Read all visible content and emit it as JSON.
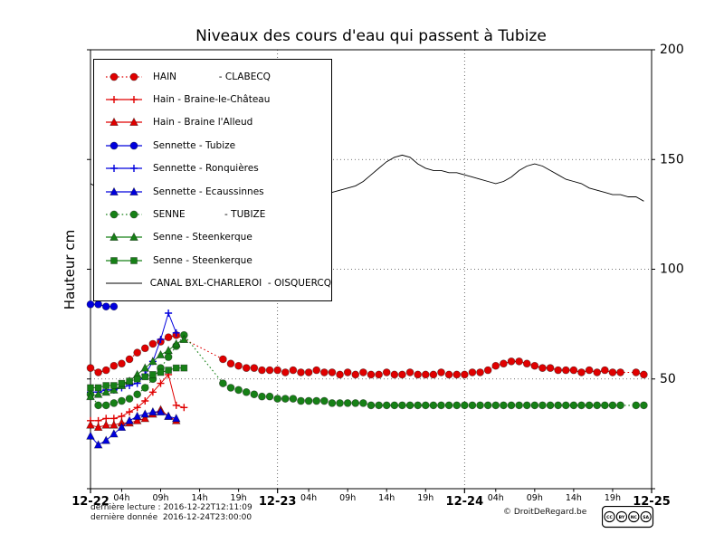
{
  "chart_data": {
    "type": "line",
    "title": "Niveaux des cours d'eau qui passent à Tubize",
    "xlabel": "",
    "ylabel": "Hauteur cm",
    "ylim": [
      0,
      200
    ],
    "yticks": [
      50,
      100,
      150,
      200
    ],
    "ytick_marks": [
      0,
      50,
      100,
      150,
      200
    ],
    "xlim_hours": [
      0,
      72
    ],
    "x_major": [
      {
        "hour": 0,
        "label": "12-22"
      },
      {
        "hour": 24,
        "label": "12-23"
      },
      {
        "hour": 48,
        "label": "12-24"
      },
      {
        "hour": 72,
        "label": "12-25"
      }
    ],
    "x_minor": [
      {
        "hour": 4,
        "label": "04h"
      },
      {
        "hour": 9,
        "label": "09h"
      },
      {
        "hour": 14,
        "label": "14h"
      },
      {
        "hour": 19,
        "label": "19h"
      },
      {
        "hour": 28,
        "label": "04h"
      },
      {
        "hour": 33,
        "label": "09h"
      },
      {
        "hour": 38,
        "label": "14h"
      },
      {
        "hour": 43,
        "label": "19h"
      },
      {
        "hour": 52,
        "label": "04h"
      },
      {
        "hour": 57,
        "label": "09h"
      },
      {
        "hour": 62,
        "label": "14h"
      },
      {
        "hour": 67,
        "label": "19h"
      }
    ],
    "grid": {
      "h_lines": [
        50,
        100,
        150
      ],
      "v_lines_hours": [
        24,
        48
      ]
    },
    "series": [
      {
        "name": "HAIN              - CLABECQ",
        "color": "#e00000",
        "marker": "circle",
        "linestyle": "dotted",
        "linewidth": 1.1,
        "points": [
          [
            0,
            55
          ],
          [
            1,
            53
          ],
          [
            2,
            54
          ],
          [
            3,
            56
          ],
          [
            4,
            57
          ],
          [
            5,
            59
          ],
          [
            6,
            62
          ],
          [
            7,
            64
          ],
          [
            8,
            66
          ],
          [
            9,
            67
          ],
          [
            10,
            69
          ],
          [
            11,
            70
          ],
          [
            17,
            59
          ],
          [
            18,
            57
          ],
          [
            19,
            56
          ],
          [
            20,
            55
          ],
          [
            21,
            55
          ],
          [
            22,
            54
          ],
          [
            23,
            54
          ],
          [
            24,
            54
          ],
          [
            25,
            53
          ],
          [
            26,
            54
          ],
          [
            27,
            53
          ],
          [
            28,
            53
          ],
          [
            29,
            54
          ],
          [
            30,
            53
          ],
          [
            31,
            53
          ],
          [
            32,
            52
          ],
          [
            33,
            53
          ],
          [
            34,
            52
          ],
          [
            35,
            53
          ],
          [
            36,
            52
          ],
          [
            37,
            52
          ],
          [
            38,
            53
          ],
          [
            39,
            52
          ],
          [
            40,
            52
          ],
          [
            41,
            53
          ],
          [
            42,
            52
          ],
          [
            43,
            52
          ],
          [
            44,
            52
          ],
          [
            45,
            53
          ],
          [
            46,
            52
          ],
          [
            47,
            52
          ],
          [
            48,
            52
          ],
          [
            49,
            53
          ],
          [
            50,
            53
          ],
          [
            51,
            54
          ],
          [
            52,
            56
          ],
          [
            53,
            57
          ],
          [
            54,
            58
          ],
          [
            55,
            58
          ],
          [
            56,
            57
          ],
          [
            57,
            56
          ],
          [
            58,
            55
          ],
          [
            59,
            55
          ],
          [
            60,
            54
          ],
          [
            61,
            54
          ],
          [
            62,
            54
          ],
          [
            63,
            53
          ],
          [
            64,
            54
          ],
          [
            65,
            53
          ],
          [
            66,
            54
          ],
          [
            67,
            53
          ],
          [
            68,
            53
          ],
          [
            70,
            53
          ],
          [
            71,
            52
          ]
        ]
      },
      {
        "name": "Hain - Braine-le-Château",
        "color": "#e00000",
        "marker": "plus",
        "linestyle": "solid",
        "linewidth": 1,
        "points": [
          [
            0,
            31
          ],
          [
            1,
            31
          ],
          [
            2,
            32
          ],
          [
            3,
            32
          ],
          [
            4,
            33
          ],
          [
            5,
            35
          ],
          [
            6,
            37
          ],
          [
            7,
            40
          ],
          [
            8,
            44
          ],
          [
            9,
            48
          ],
          [
            10,
            52
          ],
          [
            11,
            38
          ],
          [
            12,
            37
          ]
        ]
      },
      {
        "name": "Hain - Braine l'Alleud",
        "color": "#e00000",
        "marker": "triangle",
        "linestyle": "solid",
        "linewidth": 1,
        "points": [
          [
            0,
            29
          ],
          [
            1,
            28
          ],
          [
            2,
            29
          ],
          [
            3,
            29
          ],
          [
            4,
            30
          ],
          [
            5,
            30
          ],
          [
            6,
            31
          ],
          [
            7,
            32
          ],
          [
            8,
            34
          ],
          [
            9,
            36
          ],
          [
            10,
            33
          ],
          [
            11,
            31
          ]
        ]
      },
      {
        "name": "Sennette - Tubize",
        "color": "#0000dd",
        "marker": "circle",
        "linestyle": "solid",
        "linewidth": 1,
        "points": [
          [
            0,
            84
          ],
          [
            1,
            84
          ],
          [
            2,
            83
          ],
          [
            3,
            83
          ]
        ]
      },
      {
        "name": "Sennette - Ronquières",
        "color": "#0000dd",
        "marker": "plus",
        "linestyle": "solid",
        "linewidth": 1,
        "points": [
          [
            0,
            44
          ],
          [
            1,
            44
          ],
          [
            2,
            45
          ],
          [
            3,
            45
          ],
          [
            4,
            46
          ],
          [
            5,
            47
          ],
          [
            6,
            48
          ],
          [
            7,
            52
          ],
          [
            8,
            58
          ],
          [
            9,
            68
          ],
          [
            10,
            80
          ],
          [
            11,
            71
          ]
        ]
      },
      {
        "name": "Sennette - Ecaussinnes",
        "color": "#0000dd",
        "marker": "triangle",
        "linestyle": "solid",
        "linewidth": 1,
        "points": [
          [
            0,
            24
          ],
          [
            1,
            20
          ],
          [
            2,
            22
          ],
          [
            3,
            25
          ],
          [
            4,
            28
          ],
          [
            5,
            31
          ],
          [
            6,
            33
          ],
          [
            7,
            34
          ],
          [
            8,
            35
          ],
          [
            9,
            35
          ],
          [
            10,
            33
          ],
          [
            11,
            32
          ]
        ]
      },
      {
        "name": "SENNE             - TUBIZE",
        "color": "#168016",
        "marker": "circle",
        "linestyle": "dotted",
        "linewidth": 1.1,
        "points": [
          [
            0,
            43
          ],
          [
            1,
            38
          ],
          [
            2,
            38
          ],
          [
            3,
            39
          ],
          [
            4,
            40
          ],
          [
            5,
            41
          ],
          [
            6,
            43
          ],
          [
            7,
            46
          ],
          [
            8,
            50
          ],
          [
            9,
            55
          ],
          [
            10,
            60
          ],
          [
            11,
            65
          ],
          [
            12,
            70
          ],
          [
            17,
            48
          ],
          [
            18,
            46
          ],
          [
            19,
            45
          ],
          [
            20,
            44
          ],
          [
            21,
            43
          ],
          [
            22,
            42
          ],
          [
            23,
            42
          ],
          [
            24,
            41
          ],
          [
            25,
            41
          ],
          [
            26,
            41
          ],
          [
            27,
            40
          ],
          [
            28,
            40
          ],
          [
            29,
            40
          ],
          [
            30,
            40
          ],
          [
            31,
            39
          ],
          [
            32,
            39
          ],
          [
            33,
            39
          ],
          [
            34,
            39
          ],
          [
            35,
            39
          ],
          [
            36,
            38
          ],
          [
            37,
            38
          ],
          [
            38,
            38
          ],
          [
            39,
            38
          ],
          [
            40,
            38
          ],
          [
            41,
            38
          ],
          [
            42,
            38
          ],
          [
            43,
            38
          ],
          [
            44,
            38
          ],
          [
            45,
            38
          ],
          [
            46,
            38
          ],
          [
            47,
            38
          ],
          [
            48,
            38
          ],
          [
            49,
            38
          ],
          [
            50,
            38
          ],
          [
            51,
            38
          ],
          [
            52,
            38
          ],
          [
            53,
            38
          ],
          [
            54,
            38
          ],
          [
            55,
            38
          ],
          [
            56,
            38
          ],
          [
            57,
            38
          ],
          [
            58,
            38
          ],
          [
            59,
            38
          ],
          [
            60,
            38
          ],
          [
            61,
            38
          ],
          [
            62,
            38
          ],
          [
            63,
            38
          ],
          [
            64,
            38
          ],
          [
            65,
            38
          ],
          [
            66,
            38
          ],
          [
            67,
            38
          ],
          [
            68,
            38
          ],
          [
            70,
            38
          ],
          [
            71,
            38
          ]
        ]
      },
      {
        "name": "Senne - Steenkerque",
        "color": "#168016",
        "marker": "triangle",
        "linestyle": "solid",
        "linewidth": 1,
        "points": [
          [
            0,
            42
          ],
          [
            1,
            43
          ],
          [
            2,
            44
          ],
          [
            3,
            45
          ],
          [
            4,
            47
          ],
          [
            5,
            49
          ],
          [
            6,
            52
          ],
          [
            7,
            55
          ],
          [
            8,
            58
          ],
          [
            9,
            61
          ],
          [
            10,
            63
          ],
          [
            11,
            66
          ],
          [
            12,
            68
          ]
        ]
      },
      {
        "name": "Senne - Steenkerque",
        "color": "#168016",
        "marker": "square",
        "linestyle": "solid",
        "linewidth": 1,
        "points": [
          [
            0,
            46
          ],
          [
            1,
            46
          ],
          [
            2,
            47
          ],
          [
            3,
            47
          ],
          [
            4,
            48
          ],
          [
            5,
            49
          ],
          [
            6,
            50
          ],
          [
            7,
            51
          ],
          [
            8,
            52
          ],
          [
            9,
            53
          ],
          [
            10,
            54
          ],
          [
            11,
            55
          ],
          [
            12,
            55
          ]
        ]
      },
      {
        "name": "CANAL BXL-CHARLEROI  - OISQUERCQ",
        "color": "#000000",
        "marker": "none",
        "linestyle": "solid",
        "linewidth": 0.9,
        "points": [
          [
            0,
            139
          ],
          [
            1,
            137
          ],
          [
            2,
            136
          ],
          [
            3,
            135
          ],
          [
            4,
            135
          ],
          [
            5,
            134
          ],
          [
            6,
            134
          ],
          [
            7,
            133
          ],
          [
            8,
            133
          ],
          [
            9,
            132
          ],
          [
            10,
            132
          ],
          [
            11,
            132
          ],
          [
            12,
            131
          ],
          [
            13,
            131
          ],
          [
            14,
            131
          ],
          [
            15,
            130
          ],
          [
            16,
            130
          ],
          [
            17,
            130
          ],
          [
            18,
            131
          ],
          [
            19,
            131
          ],
          [
            20,
            131
          ],
          [
            21,
            132
          ],
          [
            22,
            132
          ],
          [
            23,
            132
          ],
          [
            24,
            132
          ],
          [
            25,
            132
          ],
          [
            26,
            132
          ],
          [
            27,
            132
          ],
          [
            28,
            133
          ],
          [
            29,
            133
          ],
          [
            30,
            134
          ],
          [
            31,
            135
          ],
          [
            32,
            136
          ],
          [
            33,
            137
          ],
          [
            34,
            138
          ],
          [
            35,
            140
          ],
          [
            36,
            143
          ],
          [
            37,
            146
          ],
          [
            38,
            149
          ],
          [
            39,
            151
          ],
          [
            40,
            152
          ],
          [
            41,
            151
          ],
          [
            42,
            148
          ],
          [
            43,
            146
          ],
          [
            44,
            145
          ],
          [
            45,
            145
          ],
          [
            46,
            144
          ],
          [
            47,
            144
          ],
          [
            48,
            143
          ],
          [
            49,
            142
          ],
          [
            50,
            141
          ],
          [
            51,
            140
          ],
          [
            52,
            139
          ],
          [
            53,
            140
          ],
          [
            54,
            142
          ],
          [
            55,
            145
          ],
          [
            56,
            147
          ],
          [
            57,
            148
          ],
          [
            58,
            147
          ],
          [
            59,
            145
          ],
          [
            60,
            143
          ],
          [
            61,
            141
          ],
          [
            62,
            140
          ],
          [
            63,
            139
          ],
          [
            64,
            137
          ],
          [
            65,
            136
          ],
          [
            66,
            135
          ],
          [
            67,
            134
          ],
          [
            68,
            134
          ],
          [
            69,
            133
          ],
          [
            70,
            133
          ],
          [
            71,
            131
          ]
        ]
      }
    ]
  },
  "footer": {
    "line1": "dernière lecture : 2016-12-22T12:11:09",
    "line2": "dernière donnée  2016-12-24T23:00:00",
    "copyright": "© DroitDeRegard.be",
    "license_badge": [
      "CC",
      "BY",
      "NC",
      "SA"
    ]
  }
}
